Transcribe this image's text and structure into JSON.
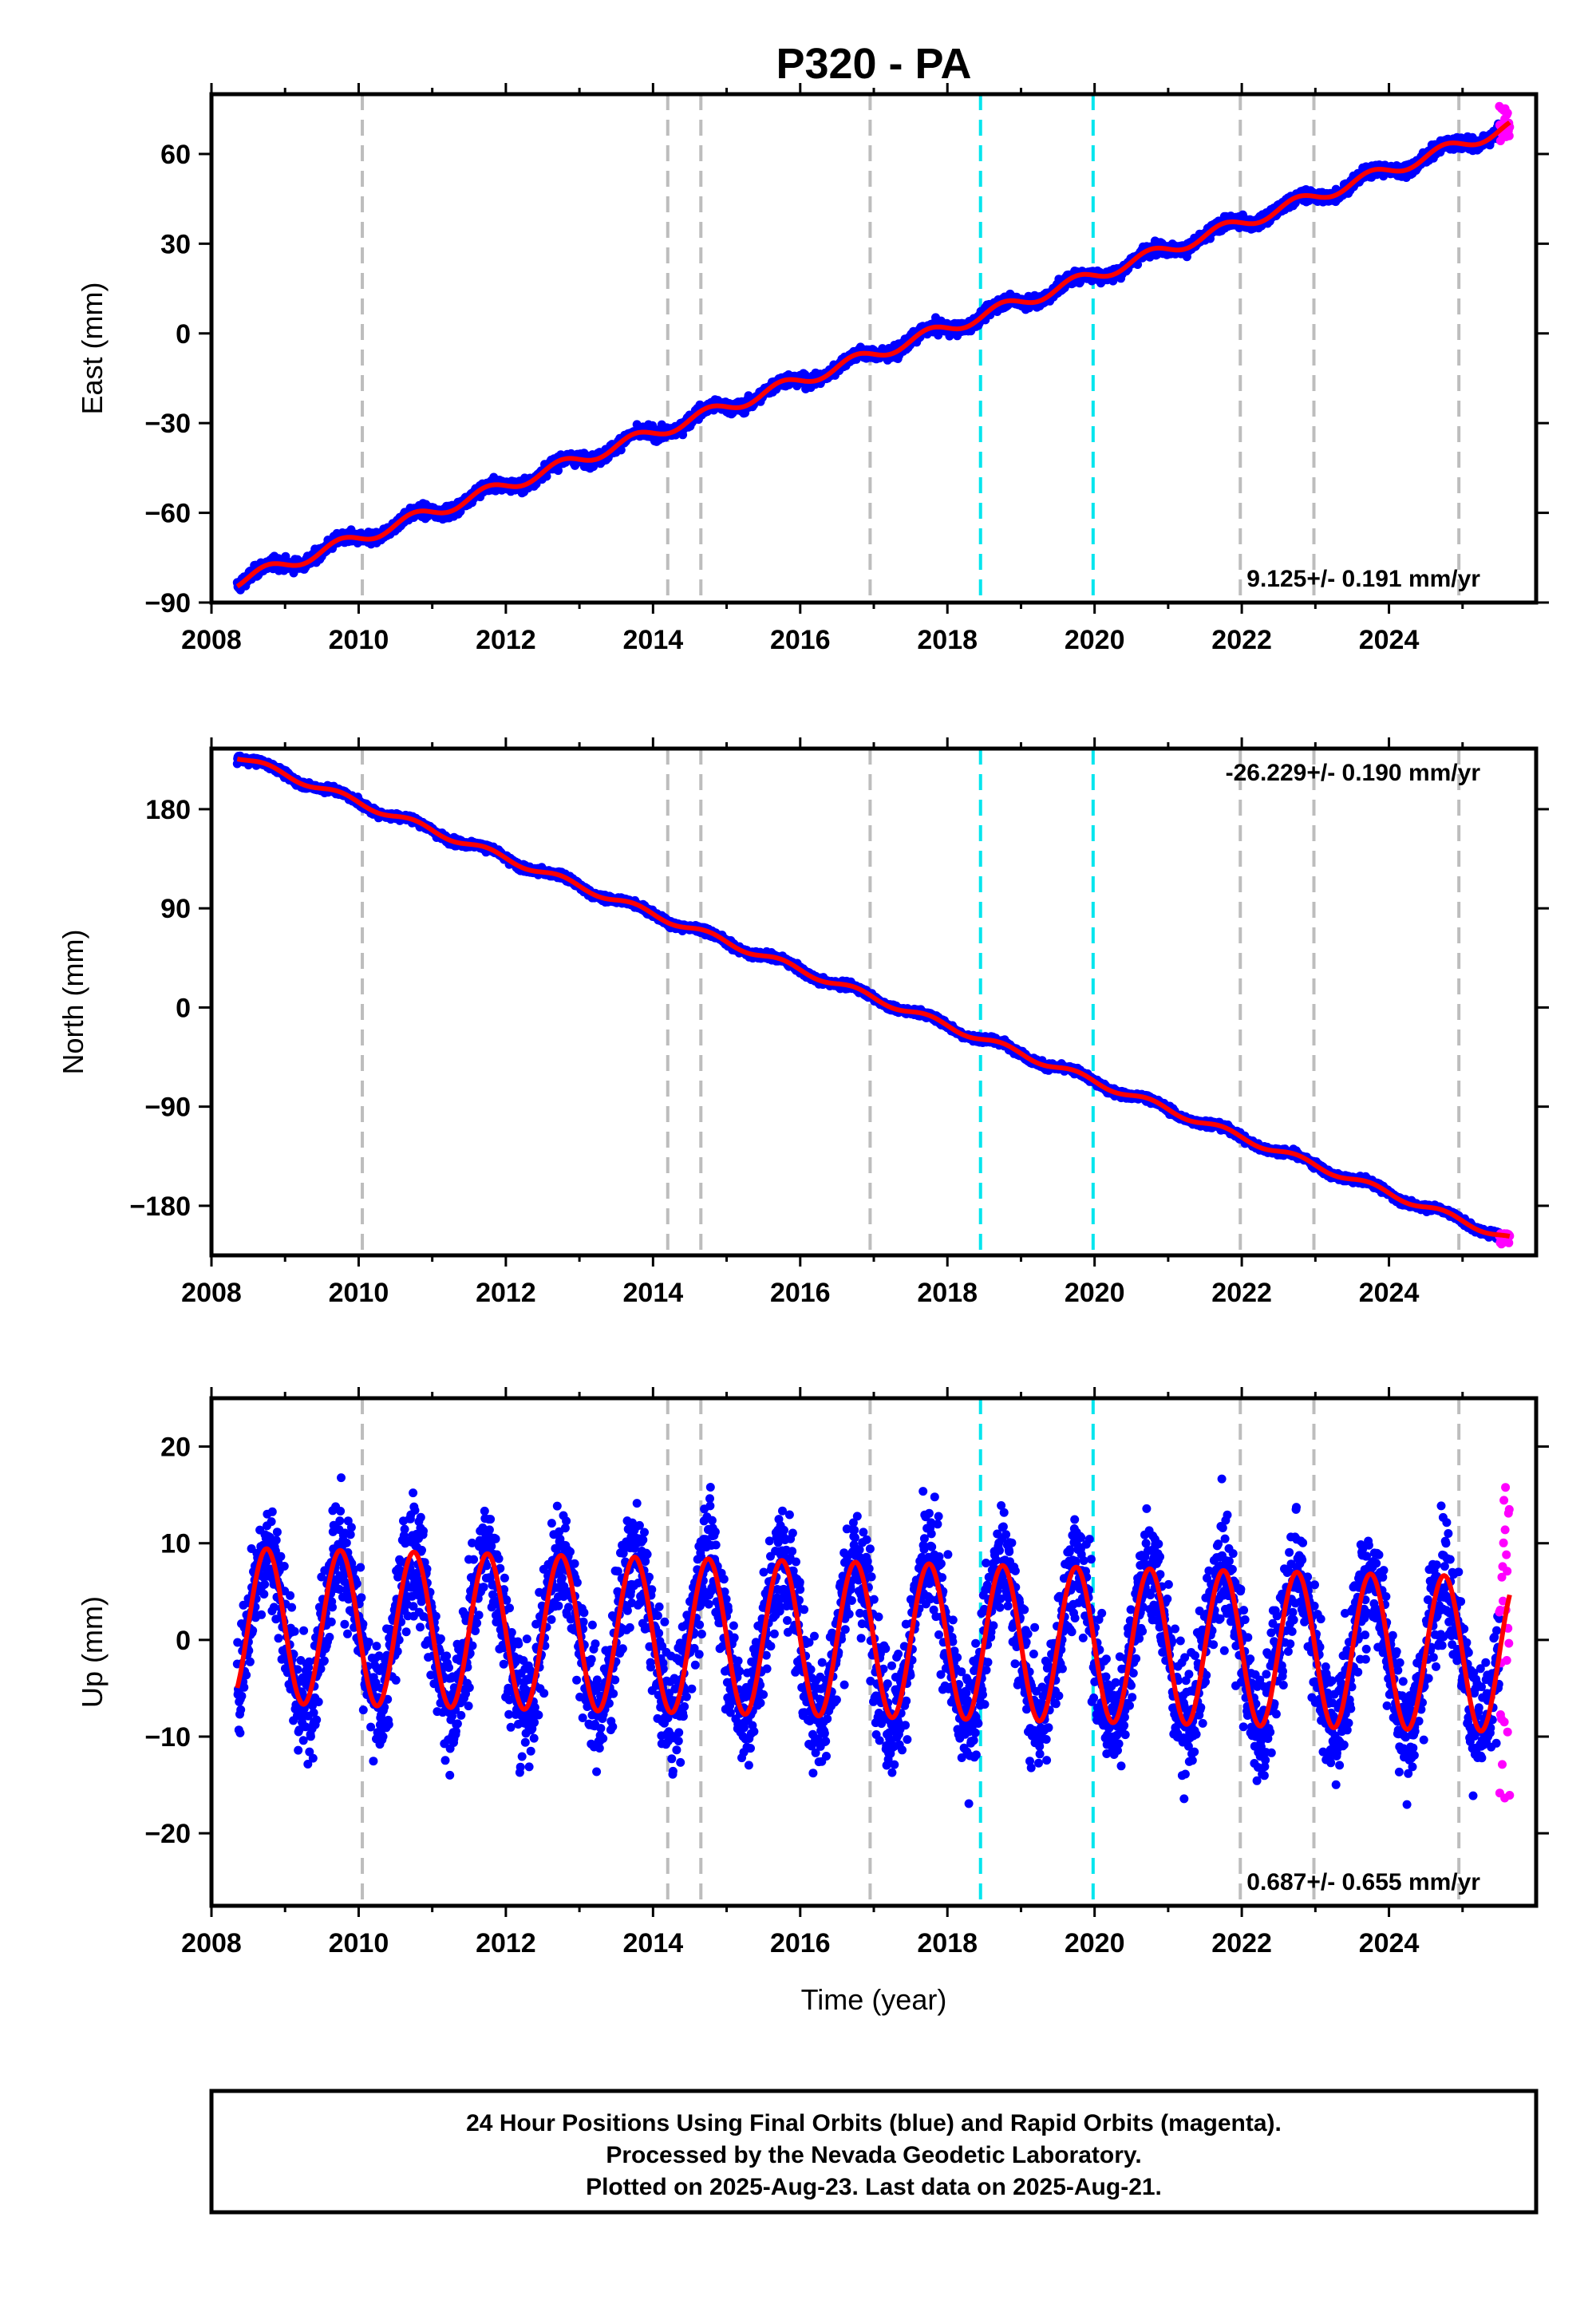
{
  "title": "P320 - PA",
  "colors": {
    "final": "#0000ff",
    "rapid": "#ff00ff",
    "model": "#ff0000",
    "grey_event": "#bdbdbd",
    "cyan_event": "#00e5ee"
  },
  "events": {
    "grey": [
      2010.05,
      2014.2,
      2014.65,
      2016.95,
      2021.98,
      2022.98,
      2024.95
    ],
    "cyan": [
      2018.45,
      2019.98
    ]
  },
  "x_axis": {
    "range": [
      2008.0,
      2026.0
    ],
    "ticks": [
      "2008",
      "2010",
      "2012",
      "2014",
      "2016",
      "2018",
      "2020",
      "2022",
      "2024"
    ],
    "label": "Time (year)"
  },
  "chart_data": [
    {
      "type": "scatter",
      "ylabel": "East (mm)",
      "ylim": [
        -90,
        80
      ],
      "yticks": [
        "60",
        "30",
        "0",
        "−30",
        "−60",
        "−90"
      ],
      "rate_label": "9.125+/- 0.191 mm/yr",
      "data_range": [
        2008.35,
        2025.64
      ],
      "series": [
        {
          "name": "Final Orbits",
          "start_value": -83,
          "end_value": 69
        },
        {
          "name": "Rapid Orbits",
          "x": [
            2025.5,
            2025.64
          ],
          "y_range": [
            64,
            76
          ]
        }
      ],
      "model": {
        "start_value": -83,
        "end_value": 69,
        "annual_amplitude": 2
      }
    },
    {
      "type": "scatter",
      "ylabel": "North (mm)",
      "ylim": [
        -225,
        235
      ],
      "yticks": [
        "180",
        "90",
        "0",
        "−90",
        "−180"
      ],
      "rate_label": "-26.229+/- 0.190 mm/yr",
      "data_range": [
        2008.35,
        2025.64
      ],
      "series": [
        {
          "name": "Final Orbits",
          "start_value": 228,
          "end_value": -210
        },
        {
          "name": "Rapid Orbits",
          "x": [
            2025.5,
            2025.64
          ],
          "y_range": [
            -215,
            -205
          ]
        }
      ],
      "model": {
        "start_value": 228,
        "end_value": -210,
        "annual_amplitude": 3
      }
    },
    {
      "type": "scatter",
      "ylabel": "Up (mm)",
      "ylim": [
        -27.5,
        25
      ],
      "yticks": [
        "20",
        "10",
        "0",
        "−10",
        "−20"
      ],
      "rate_label": "0.687+/- 0.655 mm/yr",
      "data_range": [
        2008.35,
        2025.64
      ],
      "series": [
        {
          "name": "Final Orbits",
          "start_value": 1.5,
          "end_value": -1.5,
          "y_extent": [
            -26.5,
            23.5
          ]
        },
        {
          "name": "Rapid Orbits",
          "x": [
            2025.5,
            2025.64
          ],
          "y_range": [
            -18,
            16
          ]
        }
      ],
      "model": {
        "start_value": 1.5,
        "end_value": -1.5,
        "annual_amplitude": 8
      }
    }
  ],
  "caption": {
    "line1": "24 Hour Positions Using Final Orbits (blue) and Rapid Orbits (magenta).",
    "line2": "Processed by the Nevada Geodetic Laboratory.",
    "line3": "Plotted on 2025-Aug-23. Last data on 2025-Aug-21."
  }
}
